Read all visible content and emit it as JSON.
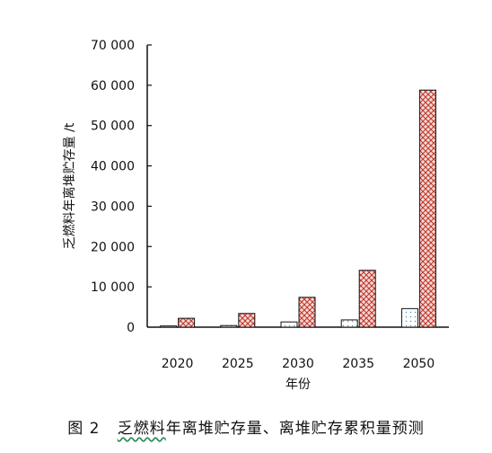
{
  "caption": {
    "figure_no": "图 2",
    "title_part1": "乏燃料",
    "title_part2": "年离堆贮存量、离堆贮存累积量预测"
  },
  "chart_data": {
    "type": "bar",
    "title": "",
    "xlabel": "年份",
    "ylabel": "乏燃料年离堆贮存量 /t",
    "ylim": [
      0,
      70000
    ],
    "yticks": [
      0,
      10000,
      20000,
      30000,
      40000,
      50000,
      60000,
      70000
    ],
    "ytick_labels": [
      "0",
      "10 000",
      "20 000",
      "30 000",
      "40 000",
      "50 000",
      "60 000",
      "70 000"
    ],
    "categories": [
      "2020",
      "2025",
      "2030",
      "2035",
      "2050"
    ],
    "series": [
      {
        "values": [
          300,
          400,
          1300,
          1800,
          4600
        ],
        "pattern": "white-dotted",
        "color": "#ffffff"
      },
      {
        "values": [
          2200,
          3400,
          7400,
          14100,
          58800
        ],
        "pattern": "crosshatch",
        "color": "#c0392b"
      }
    ],
    "grid": false,
    "legend": "none"
  }
}
